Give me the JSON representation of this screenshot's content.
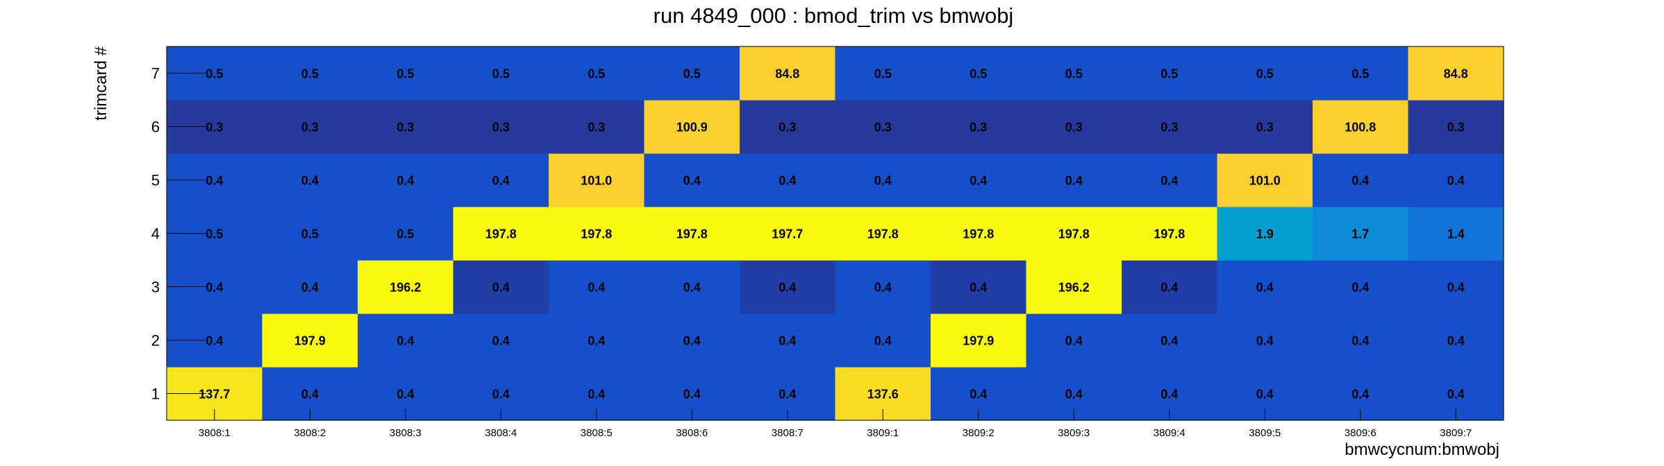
{
  "chart_data": {
    "type": "heatmap",
    "title": "run 4849_000 : bmod_trim vs bmwobj",
    "xlabel": "bmwcycnum:bmwobj",
    "ylabel": "trimcard #",
    "x": [
      "3808:1",
      "3808:2",
      "3808:3",
      "3808:4",
      "3808:5",
      "3808:6",
      "3808:7",
      "3809:1",
      "3809:2",
      "3809:3",
      "3809:4",
      "3809:5",
      "3809:6",
      "3809:7"
    ],
    "y": [
      "1",
      "2",
      "3",
      "4",
      "5",
      "6",
      "7"
    ],
    "values": [
      [
        "137.7",
        "0.4",
        "0.4",
        "0.4",
        "0.4",
        "0.4",
        "0.4",
        "137.6",
        "0.4",
        "0.4",
        "0.4",
        "0.4",
        "0.4",
        "0.4"
      ],
      [
        "0.4",
        "197.9",
        "0.4",
        "0.4",
        "0.4",
        "0.4",
        "0.4",
        "0.4",
        "197.9",
        "0.4",
        "0.4",
        "0.4",
        "0.4",
        "0.4"
      ],
      [
        "0.4",
        "0.4",
        "196.2",
        "0.4",
        "0.4",
        "0.4",
        "0.4",
        "0.4",
        "0.4",
        "196.2",
        "0.4",
        "0.4",
        "0.4",
        "0.4"
      ],
      [
        "0.5",
        "0.5",
        "0.5",
        "197.8",
        "197.8",
        "197.8",
        "197.7",
        "197.8",
        "197.8",
        "197.8",
        "197.8",
        "1.9",
        "1.7",
        "1.4"
      ],
      [
        "0.4",
        "0.4",
        "0.4",
        "0.4",
        "101.0",
        "0.4",
        "0.4",
        "0.4",
        "0.4",
        "0.4",
        "0.4",
        "101.0",
        "0.4",
        "0.4"
      ],
      [
        "0.3",
        "0.3",
        "0.3",
        "0.3",
        "0.3",
        "100.9",
        "0.3",
        "0.3",
        "0.3",
        "0.3",
        "0.3",
        "0.3",
        "100.8",
        "0.3"
      ],
      [
        "0.5",
        "0.5",
        "0.5",
        "0.5",
        "0.5",
        "0.5",
        "84.8",
        "0.5",
        "0.5",
        "0.5",
        "0.5",
        "0.5",
        "0.5",
        "84.8"
      ]
    ],
    "cell_colors": [
      [
        "#f5e61c",
        "#164fca",
        "#164fca",
        "#164fca",
        "#164fca",
        "#164fca",
        "#164fca",
        "#f9dd25",
        "#164fca",
        "#164fca",
        "#164fca",
        "#164fca",
        "#164fca",
        "#164fca"
      ],
      [
        "#164fca",
        "#f9f90f",
        "#164fca",
        "#164fca",
        "#164fca",
        "#164fca",
        "#164fca",
        "#164fca",
        "#f9f90f",
        "#164fca",
        "#164fca",
        "#164fca",
        "#164fca",
        "#164fca"
      ],
      [
        "#164fca",
        "#164fca",
        "#f9f90f",
        "#233da8",
        "#164fca",
        "#164fca",
        "#233da8",
        "#164fca",
        "#233da8",
        "#f9f90f",
        "#233da8",
        "#164fca",
        "#164fca",
        "#164fca"
      ],
      [
        "#164fca",
        "#164fca",
        "#164fca",
        "#f9f90f",
        "#f9f90f",
        "#f9f90f",
        "#f9f90f",
        "#f9f90f",
        "#f9f90f",
        "#f9f90f",
        "#f9f90f",
        "#069fcf",
        "#0e8bd6",
        "#1273d8"
      ],
      [
        "#164fca",
        "#164fca",
        "#164fca",
        "#164fca",
        "#fbcf2d",
        "#164fca",
        "#164fca",
        "#164fca",
        "#164fca",
        "#164fca",
        "#164fca",
        "#fbcf2d",
        "#164fca",
        "#164fca"
      ],
      [
        "#263a9d",
        "#263a9d",
        "#263a9d",
        "#263a9d",
        "#263a9d",
        "#fbcf2d",
        "#263a9d",
        "#263a9d",
        "#263a9d",
        "#263a9d",
        "#263a9d",
        "#263a9d",
        "#fbcf2d",
        "#263a9d"
      ],
      [
        "#164fca",
        "#164fca",
        "#164fca",
        "#164fca",
        "#164fca",
        "#164fca",
        "#fbcf2d",
        "#164fca",
        "#164fca",
        "#164fca",
        "#164fca",
        "#164fca",
        "#164fca",
        "#fbcf2d"
      ]
    ],
    "grid": false,
    "legend": "none"
  }
}
